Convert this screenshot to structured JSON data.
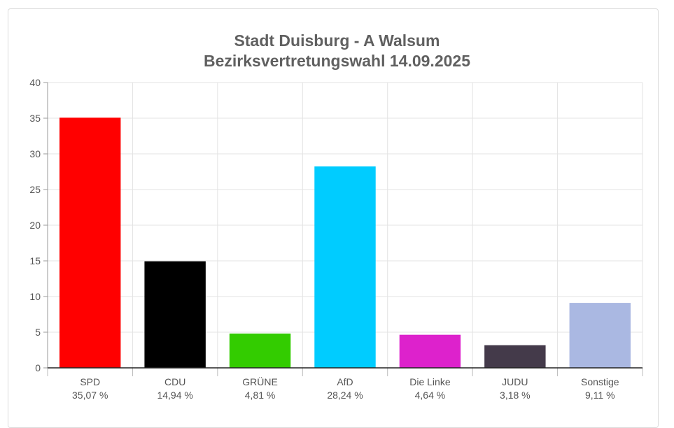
{
  "chart_data": {
    "type": "bar",
    "title": "Stadt Duisburg - A Walsum",
    "subtitle": "Bezirksvertretungswahl 14.09.2025",
    "categories": [
      "SPD",
      "CDU",
      "GRÜNE",
      "AfD",
      "Die Linke",
      "JUDU",
      "Sonstige"
    ],
    "value_labels": [
      "35,07 %",
      "14,94 %",
      "4,81 %",
      "28,24 %",
      "4,64 %",
      "3,18 %",
      "9,11 %"
    ],
    "values": [
      35.07,
      14.94,
      4.81,
      28.24,
      4.64,
      3.18,
      9.11
    ],
    "colors": [
      "#ff0000",
      "#000000",
      "#33cc00",
      "#00ccff",
      "#dd22cc",
      "#443a4a",
      "#aab8e2"
    ],
    "ylim": [
      0,
      40
    ],
    "yticks": [
      "0",
      "5",
      "10",
      "15",
      "20",
      "25",
      "30",
      "35",
      "40"
    ],
    "grid": true
  }
}
